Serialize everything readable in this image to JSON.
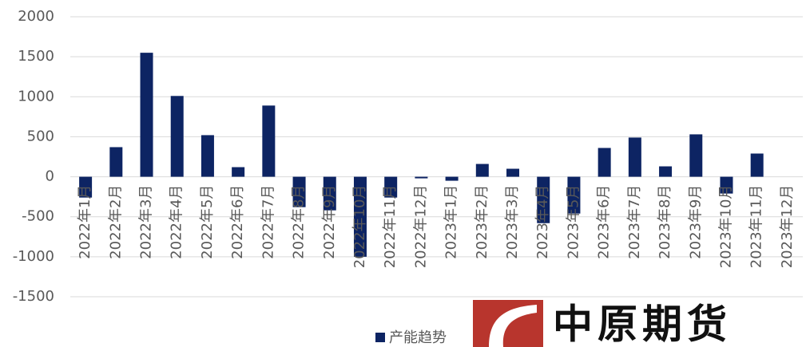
{
  "chart_data": {
    "type": "bar",
    "categories": [
      "2022年1月",
      "2022年2月",
      "2022年3月",
      "2022年4月",
      "2022年5月",
      "2022年6月",
      "2022年7月",
      "2022年8月",
      "2022年9月",
      "2022年10月",
      "2022年11月",
      "2022年12月",
      "2023年1月",
      "2023年2月",
      "2023年3月",
      "2023年4月",
      "2023年5月",
      "2023年6月",
      "2023年7月",
      "2023年8月",
      "2023年9月",
      "2023年10月",
      "2023年11月",
      "2023年12月"
    ],
    "series": [
      {
        "name": "产能趋势",
        "color": "#0d2463",
        "values": [
          -260,
          370,
          1550,
          1010,
          520,
          120,
          890,
          -380,
          -420,
          -1000,
          -260,
          -20,
          -50,
          160,
          100,
          -580,
          -460,
          360,
          490,
          130,
          530,
          -210,
          290,
          null
        ]
      }
    ],
    "ylim": [
      -1500,
      2000
    ],
    "yticks": [
      -1500,
      -1000,
      -500,
      0,
      500,
      1000,
      1500,
      2000
    ],
    "grid": true,
    "legend": "bottom"
  },
  "watermark": "中原期货"
}
